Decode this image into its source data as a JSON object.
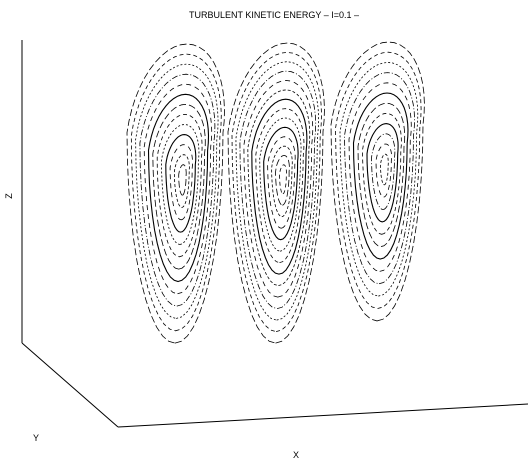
{
  "chart_data": {
    "type": "contour",
    "projection": "3d",
    "title": "TURBULENT KINETIC ENERGY  –  I=0.1  –",
    "xlabel": "X",
    "ylabel": "Y",
    "zlabel": "Z",
    "grid": false,
    "legend": "none",
    "series": [
      {
        "levels": 13
      },
      {
        "levels": 14
      },
      {
        "levels": 12
      }
    ]
  }
}
